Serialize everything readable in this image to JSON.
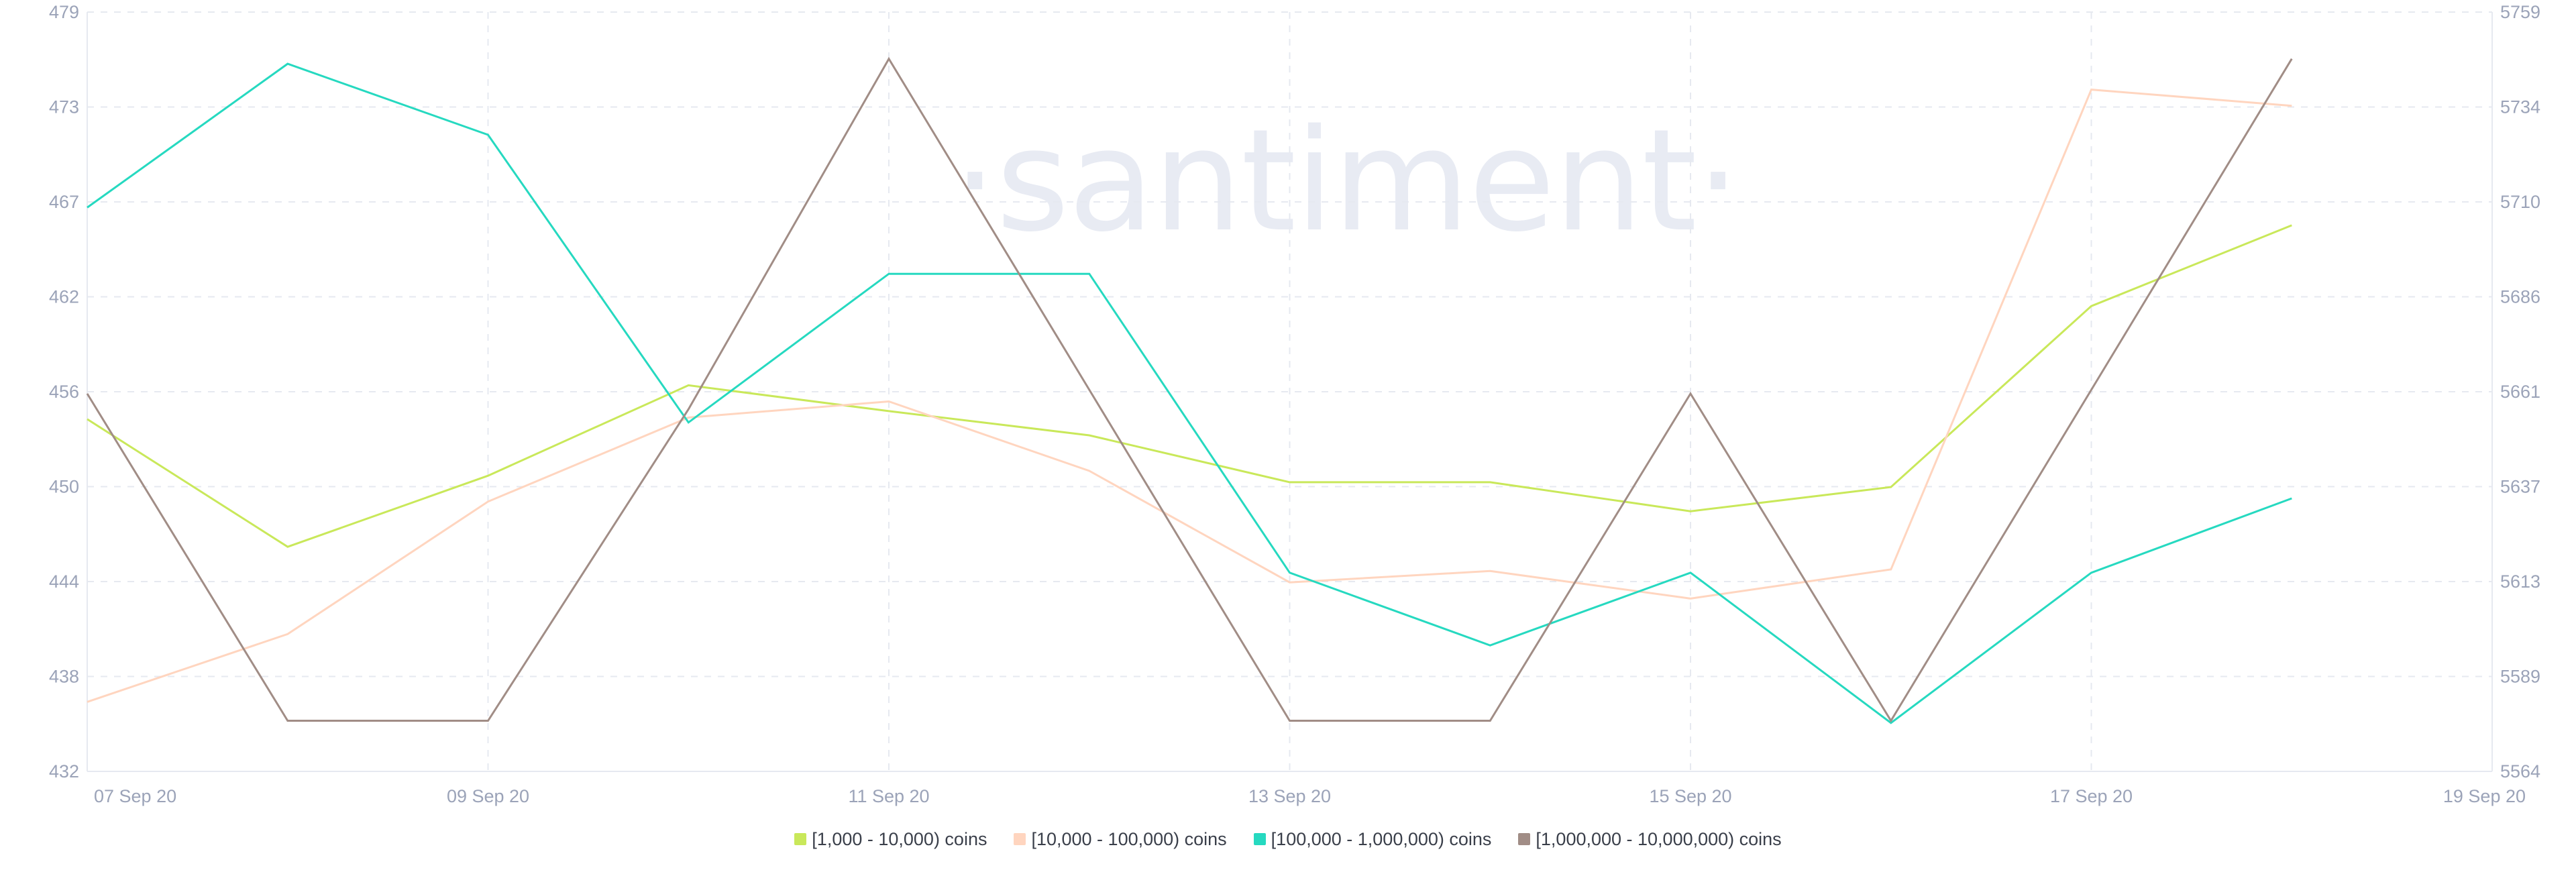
{
  "watermark": "·santiment·",
  "chart_data": {
    "type": "line",
    "x": [
      "07 Sep 20",
      "08 Sep 20",
      "09 Sep 20",
      "10 Sep 20",
      "11 Sep 20",
      "12 Sep 20",
      "13 Sep 20",
      "14 Sep 20",
      "15 Sep 20",
      "16 Sep 20",
      "17 Sep 20",
      "18 Sep 20"
    ],
    "x_tick_labels": [
      "07 Sep 20",
      "09 Sep 20",
      "11 Sep 20",
      "13 Sep 20",
      "15 Sep 20",
      "17 Sep 20",
      "19 Sep 20"
    ],
    "x_range": [
      "07 Sep 20",
      "19 Sep 20"
    ],
    "y_left": {
      "ticks": [
        "432",
        "438",
        "444",
        "450",
        "456",
        "462",
        "467",
        "473",
        "479"
      ],
      "range": [
        432,
        479
      ]
    },
    "y_right": {
      "ticks": [
        "5564",
        "5589",
        "5613",
        "5637",
        "5661",
        "5686",
        "5710",
        "5734",
        "5759"
      ],
      "range": [
        5564,
        5759
      ]
    },
    "grid": true,
    "legend_position": "bottom-center",
    "series": [
      {
        "name": "[1,000 - 10,000) coins",
        "color": "#c9e85a",
        "axis": "left",
        "values": [
          453.8,
          445.9,
          450.3,
          455.9,
          454.3,
          452.8,
          449.9,
          449.9,
          448.1,
          449.6,
          460.8,
          465.8
        ]
      },
      {
        "name": "[10,000 - 100,000) coins",
        "color": "#ffd5bf",
        "axis": "left",
        "values": [
          436.3,
          440.5,
          448.7,
          453.9,
          454.9,
          450.6,
          443.7,
          444.4,
          442.7,
          444.5,
          474.2,
          473.2
        ]
      },
      {
        "name": "[100,000  - 1,000,000) coins",
        "color": "#26d9c0",
        "axis": "left",
        "values": [
          466.9,
          475.8,
          471.4,
          453.6,
          462.8,
          462.8,
          444.3,
          439.8,
          444.3,
          435.0,
          444.3,
          448.9
        ]
      },
      {
        "name": "[1,000,000 - 10,000,000) coins",
        "color": "#a18d86",
        "axis": "right",
        "values": [
          5661,
          5577,
          5577,
          5657,
          5747,
          5662,
          5577,
          5577,
          5661,
          5577,
          5662,
          5747
        ]
      }
    ]
  }
}
